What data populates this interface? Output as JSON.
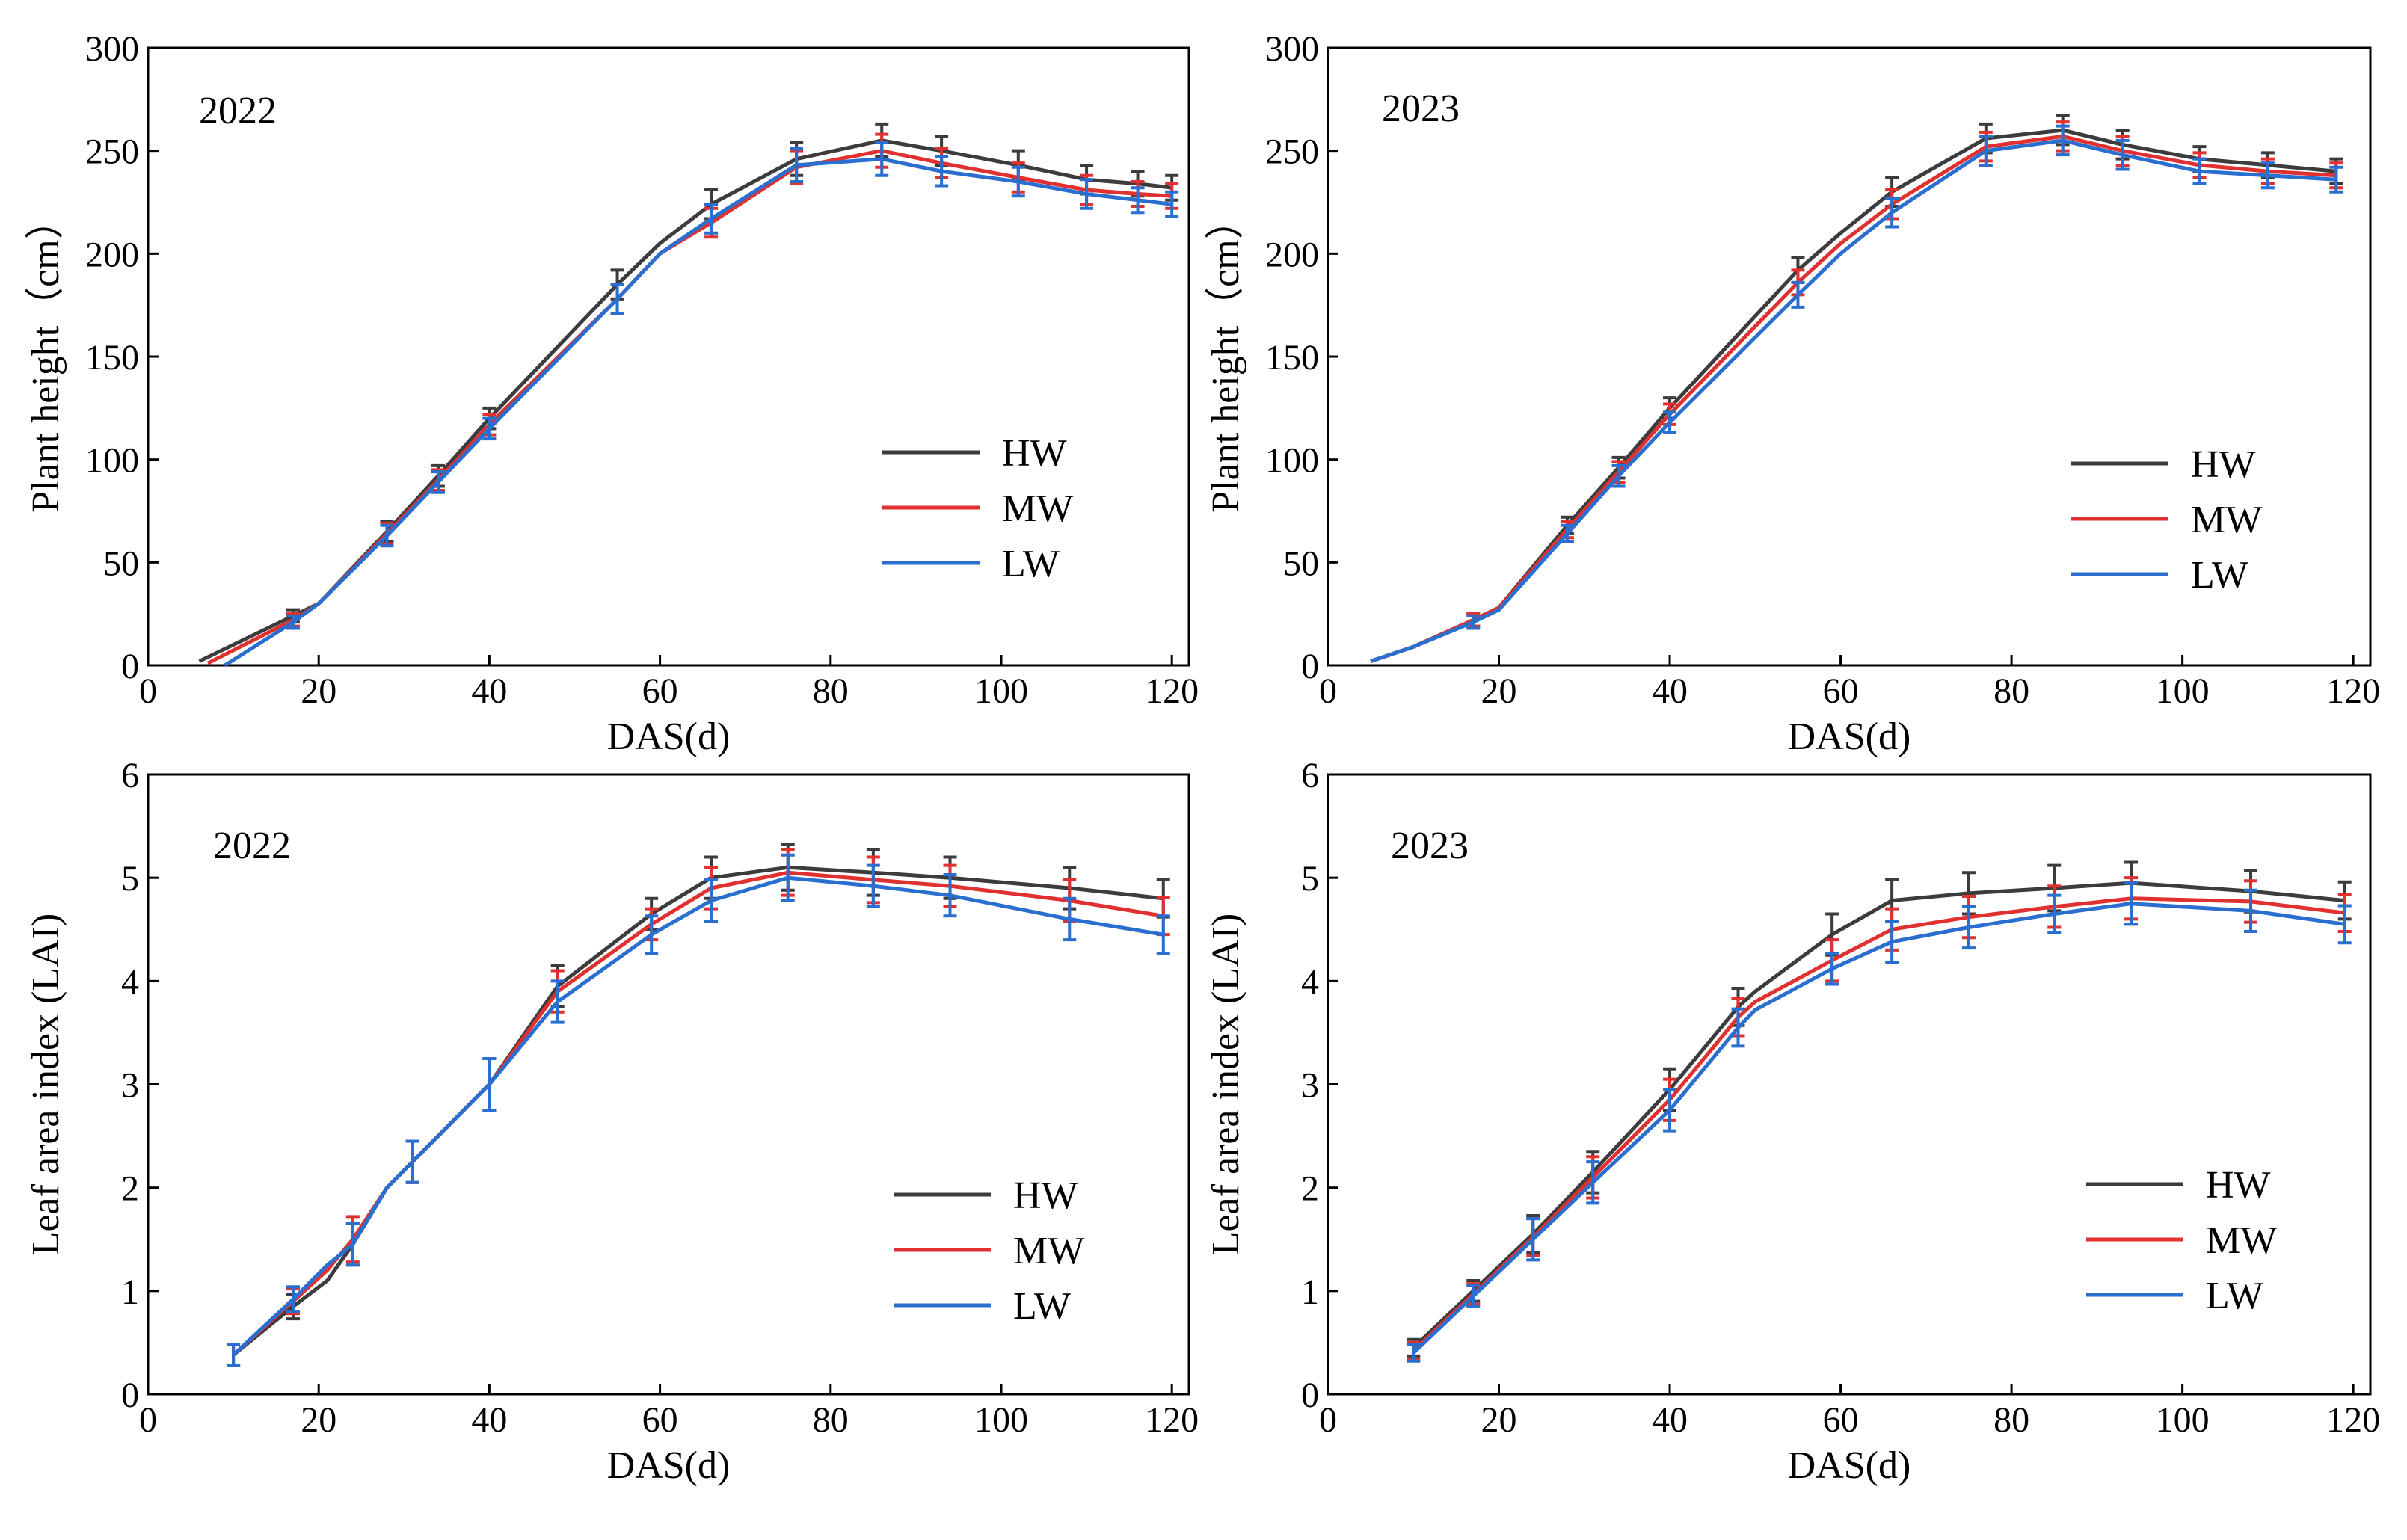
{
  "figure": {
    "colors": {
      "HW": "#3c3c3c",
      "MW": "#e03030",
      "LW": "#2a6fd0"
    }
  },
  "chart_data": [
    {
      "type": "line",
      "year_label": "2022",
      "xlabel": "DAS(d)",
      "ylabel": "Plant height（cm）",
      "xlim": [
        0,
        122
      ],
      "ylim": [
        0,
        300
      ],
      "xticks": [
        0,
        20,
        40,
        60,
        80,
        100,
        120
      ],
      "yticks": [
        0,
        50,
        100,
        150,
        200,
        250,
        300
      ],
      "legend_position": "center-right",
      "series": [
        {
          "name": "HW",
          "x": [
            6,
            17,
            20,
            28,
            34,
            40,
            55,
            60,
            66,
            76,
            86,
            93,
            102,
            110,
            116,
            120
          ],
          "y": [
            2,
            24,
            30,
            65,
            92,
            120,
            185,
            205,
            224,
            246,
            255,
            250,
            243,
            236,
            234,
            232
          ],
          "err": [
            0,
            3,
            0,
            5,
            5,
            5,
            7,
            0,
            7,
            8,
            8,
            7,
            7,
            7,
            6,
            6
          ]
        },
        {
          "name": "MW",
          "x": [
            7,
            17,
            20,
            28,
            34,
            40,
            55,
            60,
            66,
            76,
            86,
            93,
            102,
            110,
            116,
            120
          ],
          "y": [
            1,
            22,
            30,
            64,
            90,
            117,
            178,
            200,
            215,
            242,
            250,
            244,
            237,
            231,
            229,
            228
          ],
          "err": [
            0,
            3,
            0,
            5,
            5,
            5,
            7,
            0,
            7,
            8,
            8,
            7,
            7,
            7,
            6,
            6
          ]
        },
        {
          "name": "LW",
          "x": [
            9,
            17,
            20,
            28,
            34,
            40,
            55,
            60,
            66,
            76,
            86,
            93,
            102,
            110,
            116,
            120
          ],
          "y": [
            0,
            21,
            30,
            63,
            89,
            115,
            178,
            200,
            217,
            243,
            246,
            240,
            235,
            229,
            226,
            224
          ],
          "err": [
            0,
            3,
            0,
            5,
            5,
            5,
            7,
            0,
            7,
            8,
            8,
            7,
            7,
            7,
            6,
            6
          ]
        }
      ]
    },
    {
      "type": "line",
      "year_label": "2023",
      "xlabel": "DAS(d)",
      "ylabel": "Plant height（cm）",
      "xlim": [
        0,
        122
      ],
      "ylim": [
        0,
        300
      ],
      "xticks": [
        0,
        20,
        40,
        60,
        80,
        100,
        120
      ],
      "yticks": [
        0,
        50,
        100,
        150,
        200,
        250,
        300
      ],
      "legend_position": "center-right",
      "series": [
        {
          "name": "HW",
          "x": [
            5,
            10,
            17,
            20,
            28,
            34,
            40,
            55,
            60,
            66,
            77,
            86,
            93,
            102,
            110,
            118
          ],
          "y": [
            2,
            9,
            22,
            28,
            68,
            96,
            125,
            192,
            210,
            230,
            256,
            260,
            253,
            246,
            243,
            240
          ],
          "err": [
            0,
            0,
            3,
            0,
            4,
            5,
            5,
            6,
            0,
            7,
            7,
            7,
            7,
            6,
            6,
            6
          ]
        },
        {
          "name": "MW",
          "x": [
            5,
            10,
            17,
            20,
            28,
            34,
            40,
            55,
            60,
            66,
            77,
            86,
            93,
            102,
            110,
            118
          ],
          "y": [
            2,
            9,
            22,
            28,
            66,
            94,
            122,
            186,
            205,
            224,
            252,
            257,
            250,
            243,
            240,
            238
          ],
          "err": [
            0,
            0,
            3,
            0,
            4,
            5,
            5,
            6,
            0,
            7,
            7,
            7,
            7,
            6,
            6,
            6
          ]
        },
        {
          "name": "LW",
          "x": [
            5,
            10,
            17,
            20,
            28,
            34,
            40,
            55,
            60,
            66,
            77,
            86,
            93,
            102,
            110,
            118
          ],
          "y": [
            2,
            9,
            21,
            27,
            64,
            92,
            118,
            180,
            200,
            220,
            250,
            255,
            248,
            240,
            238,
            236
          ],
          "err": [
            0,
            0,
            3,
            0,
            4,
            5,
            5,
            6,
            0,
            7,
            7,
            7,
            7,
            6,
            6,
            6
          ]
        }
      ]
    },
    {
      "type": "line",
      "year_label": "2022",
      "xlabel": "DAS(d)",
      "ylabel": "Leaf area index (LAI)",
      "xlim": [
        0,
        122
      ],
      "ylim": [
        0,
        6
      ],
      "xticks": [
        0,
        20,
        40,
        60,
        80,
        100,
        120
      ],
      "yticks": [
        0,
        1,
        2,
        3,
        4,
        5,
        6
      ],
      "legend_position": "lower-right",
      "series": [
        {
          "name": "HW",
          "x": [
            10,
            17,
            21,
            24,
            28,
            31,
            40,
            48,
            59,
            66,
            75,
            85,
            94,
            108,
            119
          ],
          "y": [
            0.38,
            0.85,
            1.1,
            1.45,
            2.0,
            2.25,
            3.0,
            3.95,
            4.65,
            5.0,
            5.1,
            5.05,
            5.0,
            4.9,
            4.8
          ],
          "err": [
            0.1,
            0.12,
            0,
            0.2,
            0,
            0.2,
            0.25,
            0.2,
            0.15,
            0.2,
            0.22,
            0.22,
            0.2,
            0.2,
            0.18
          ]
        },
        {
          "name": "MW",
          "x": [
            10,
            17,
            21,
            24,
            28,
            31,
            40,
            48,
            59,
            66,
            75,
            85,
            94,
            108,
            119
          ],
          "y": [
            0.38,
            0.9,
            1.2,
            1.5,
            2.0,
            2.25,
            3.0,
            3.9,
            4.55,
            4.9,
            5.05,
            4.98,
            4.92,
            4.78,
            4.63
          ],
          "err": [
            0.1,
            0.12,
            0,
            0.22,
            0,
            0.2,
            0.25,
            0.2,
            0.15,
            0.2,
            0.22,
            0.22,
            0.2,
            0.2,
            0.18
          ]
        },
        {
          "name": "LW",
          "x": [
            10,
            17,
            21,
            24,
            28,
            31,
            40,
            48,
            59,
            66,
            75,
            85,
            94,
            108,
            119
          ],
          "y": [
            0.38,
            0.92,
            1.25,
            1.45,
            2.0,
            2.25,
            3.0,
            3.8,
            4.45,
            4.78,
            5.0,
            4.92,
            4.83,
            4.6,
            4.45
          ],
          "err": [
            0.1,
            0.12,
            0,
            0.2,
            0,
            0.2,
            0.25,
            0.2,
            0.18,
            0.2,
            0.22,
            0.2,
            0.2,
            0.2,
            0.18
          ]
        }
      ]
    },
    {
      "type": "line",
      "year_label": "2023",
      "xlabel": "DAS(d)",
      "ylabel": "Leaf area index (LAI)",
      "xlim": [
        0,
        122
      ],
      "ylim": [
        0,
        6
      ],
      "xticks": [
        0,
        20,
        40,
        60,
        80,
        100,
        120
      ],
      "yticks": [
        0,
        1,
        2,
        3,
        4,
        5,
        6
      ],
      "legend_position": "lower-right",
      "series": [
        {
          "name": "HW",
          "x": [
            10,
            17,
            24,
            31,
            40,
            48,
            50,
            59,
            66,
            75,
            85,
            94,
            108,
            119
          ],
          "y": [
            0.45,
            1.0,
            1.55,
            2.15,
            2.95,
            3.75,
            3.9,
            4.45,
            4.78,
            4.85,
            4.9,
            4.95,
            4.87,
            4.78
          ],
          "err": [
            0.08,
            0.1,
            0.18,
            0.2,
            0.2,
            0.18,
            0,
            0.2,
            0.2,
            0.2,
            0.22,
            0.2,
            0.2,
            0.18
          ]
        },
        {
          "name": "MW",
          "x": [
            10,
            17,
            24,
            31,
            40,
            48,
            50,
            59,
            66,
            75,
            85,
            94,
            108,
            119
          ],
          "y": [
            0.42,
            0.97,
            1.52,
            2.1,
            2.85,
            3.65,
            3.8,
            4.2,
            4.5,
            4.62,
            4.72,
            4.8,
            4.77,
            4.66
          ],
          "err": [
            0.08,
            0.1,
            0.18,
            0.2,
            0.2,
            0.18,
            0,
            0.2,
            0.2,
            0.2,
            0.2,
            0.2,
            0.2,
            0.18
          ]
        },
        {
          "name": "LW",
          "x": [
            10,
            17,
            24,
            31,
            40,
            48,
            50,
            59,
            66,
            75,
            85,
            94,
            108,
            119
          ],
          "y": [
            0.4,
            0.95,
            1.5,
            2.05,
            2.75,
            3.55,
            3.72,
            4.12,
            4.38,
            4.52,
            4.65,
            4.75,
            4.68,
            4.55
          ],
          "err": [
            0.08,
            0.1,
            0.2,
            0.2,
            0.2,
            0.18,
            0,
            0.15,
            0.2,
            0.2,
            0.18,
            0.2,
            0.2,
            0.18
          ]
        }
      ]
    }
  ]
}
